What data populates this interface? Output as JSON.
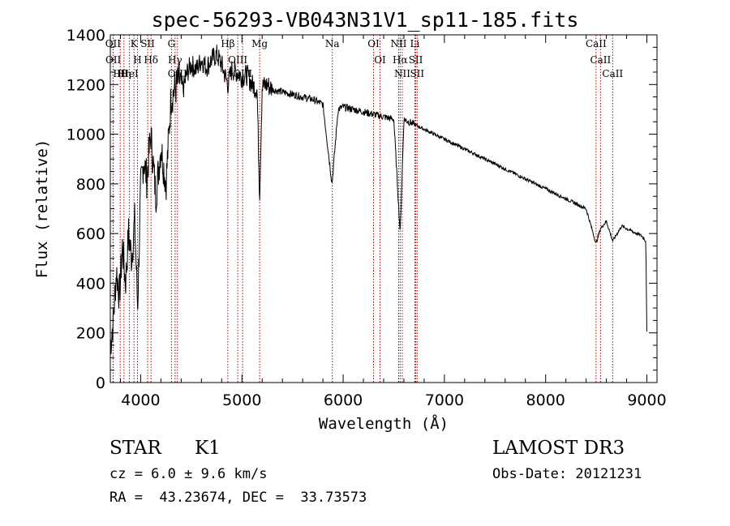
{
  "chart_data": {
    "type": "line",
    "title": "spec-56293-VB043N31V1_sp11-185.fits",
    "xlabel": "Wavelength (Å)",
    "ylabel": "Flux (relative)",
    "xlim": [
      3700,
      9100
    ],
    "ylim": [
      0,
      1400
    ],
    "xticks": [
      4000,
      5000,
      6000,
      7000,
      8000,
      9000
    ],
    "yticks": [
      0,
      200,
      400,
      600,
      800,
      1000,
      1200,
      1400
    ],
    "spectrum": {
      "x": [
        3700,
        3730,
        3760,
        3790,
        3820,
        3850,
        3880,
        3910,
        3940,
        3970,
        4000,
        4030,
        4060,
        4100,
        4150,
        4200,
        4250,
        4300,
        4340,
        4380,
        4420,
        4460,
        4500,
        4550,
        4600,
        4650,
        4700,
        4750,
        4800,
        4861,
        4900,
        4950,
        5000,
        5050,
        5100,
        5150,
        5175,
        5200,
        5250,
        5300,
        5400,
        5500,
        5600,
        5700,
        5800,
        5890,
        5950,
        6000,
        6100,
        6200,
        6300,
        6400,
        6500,
        6563,
        6600,
        6700,
        6800,
        7000,
        7200,
        7400,
        7600,
        7800,
        8000,
        8200,
        8400,
        8498,
        8542,
        8600,
        8662,
        8750,
        8850,
        8950,
        8990,
        9000
      ],
      "y": [
        150,
        250,
        450,
        350,
        550,
        400,
        600,
        500,
        650,
        300,
        780,
        900,
        820,
        1000,
        750,
        950,
        800,
        1150,
        1180,
        1220,
        1180,
        1250,
        1280,
        1260,
        1300,
        1270,
        1300,
        1320,
        1280,
        1200,
        1260,
        1250,
        1230,
        1240,
        1200,
        1180,
        750,
        1190,
        1200,
        1180,
        1170,
        1160,
        1150,
        1140,
        1120,
        800,
        1100,
        1110,
        1100,
        1090,
        1080,
        1070,
        1060,
        600,
        1060,
        1040,
        1020,
        980,
        940,
        900,
        860,
        820,
        780,
        740,
        700,
        560,
        620,
        650,
        570,
        630,
        610,
        590,
        570,
        200
      ]
    },
    "lines": [
      {
        "label": "Hθ",
        "wave": 3798
      },
      {
        "label": "OII",
        "wave": 3727
      },
      {
        "label": "OII",
        "wave": 3729
      },
      {
        "label": "K",
        "wave": 3934
      },
      {
        "label": "HeI",
        "wave": 3889
      },
      {
        "label": "Hη",
        "wave": 3835
      },
      {
        "label": "Hδ",
        "wave": 4102
      },
      {
        "label": "SII",
        "wave": 4069
      },
      {
        "label": "H",
        "wave": 3968
      },
      {
        "label": "OIII",
        "wave": 4363
      },
      {
        "label": "Hγ",
        "wave": 4340
      },
      {
        "label": "G",
        "wave": 4304
      },
      {
        "label": "OIII",
        "wave": 5007
      },
      {
        "label": "OIII",
        "wave": 4959
      },
      {
        "label": "Hβ",
        "wave": 4861
      },
      {
        "label": "Mg",
        "wave": 5175
      },
      {
        "label": "Na",
        "wave": 5893
      },
      {
        "label": "OI",
        "wave": 6300
      },
      {
        "label": "OI",
        "wave": 6364
      },
      {
        "label": "Hα",
        "wave": 6563
      },
      {
        "label": "NII",
        "wave": 6548
      },
      {
        "label": "NII",
        "wave": 6584
      },
      {
        "label": "SII",
        "wave": 6717
      },
      {
        "label": "SII",
        "wave": 6731
      },
      {
        "label": "Li",
        "wave": 6708
      },
      {
        "label": "CaII",
        "wave": 8498
      },
      {
        "label": "CaII",
        "wave": 8542
      },
      {
        "label": "CaII",
        "wave": 8662
      }
    ],
    "line_color": "#b00000"
  },
  "info": {
    "object_class": "STAR",
    "subclass": "K1",
    "survey": "LAMOST DR3",
    "cz": "cz = 6.0 ± 9.6 km/s",
    "obs_date": "Obs-Date: 20121231",
    "coords": "RA =  43.23674, DEC =  33.73573"
  }
}
